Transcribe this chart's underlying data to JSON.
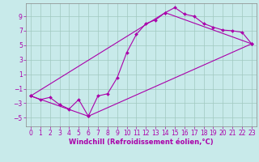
{
  "xlabel": "Windchill (Refroidissement éolien,°C)",
  "background_color": "#c8eaea",
  "grid_color": "#a0c8c0",
  "line_color": "#aa00aa",
  "marker": "D",
  "marker_size": 2,
  "xlim": [
    -0.5,
    23.5
  ],
  "ylim": [
    -6.2,
    10.8
  ],
  "xticks": [
    0,
    1,
    2,
    3,
    4,
    5,
    6,
    7,
    8,
    9,
    10,
    11,
    12,
    13,
    14,
    15,
    16,
    17,
    18,
    19,
    20,
    21,
    22,
    23
  ],
  "yticks": [
    -5,
    -3,
    -1,
    1,
    3,
    5,
    7,
    9
  ],
  "font_size": 5.5,
  "xlabel_fontsize": 6.0,
  "line1_x": [
    0,
    1,
    2,
    3,
    4,
    5,
    6,
    7,
    8,
    9,
    10,
    11,
    12,
    13,
    14,
    15,
    16,
    17,
    18,
    19,
    20,
    21,
    22,
    23
  ],
  "line1_y": [
    -2.0,
    -2.5,
    -2.2,
    -3.2,
    -3.8,
    -2.5,
    -4.8,
    -2.0,
    -1.7,
    0.5,
    4.0,
    6.5,
    8.0,
    8.5,
    9.5,
    10.2,
    9.3,
    9.0,
    8.0,
    7.5,
    7.1,
    7.0,
    6.8,
    5.2
  ],
  "line2_x": [
    0,
    14,
    23
  ],
  "line2_y": [
    -2.0,
    9.5,
    5.2
  ],
  "line3_x": [
    0,
    6,
    23
  ],
  "line3_y": [
    -2.0,
    -4.8,
    5.2
  ]
}
